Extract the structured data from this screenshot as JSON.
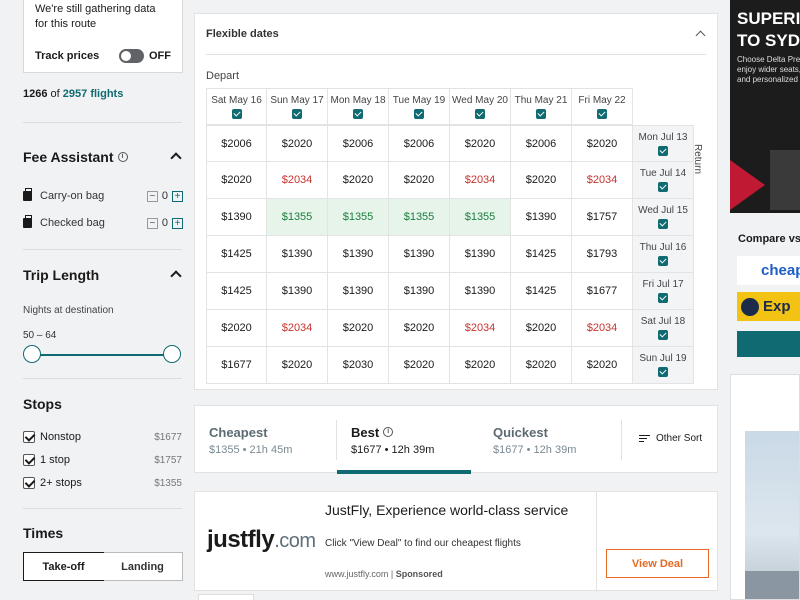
{
  "sidebar": {
    "track": {
      "message": "We're still gathering data for this route",
      "label": "Track prices",
      "toggle_state": "OFF"
    },
    "flight_count": {
      "shown": "1266",
      "of": "of",
      "total": "2957 flights"
    },
    "fee_assistant": {
      "title": "Fee Assistant",
      "carry_on": {
        "label": "Carry-on bag",
        "value": "0"
      },
      "checked": {
        "label": "Checked bag",
        "value": "0"
      }
    },
    "trip_length": {
      "title": "Trip Length",
      "nights_label": "Nights at destination",
      "range": "50 – 64"
    },
    "stops": {
      "title": "Stops",
      "items": [
        {
          "label": "Nonstop",
          "price": "$1677"
        },
        {
          "label": "1 stop",
          "price": "$1757"
        },
        {
          "label": "2+ stops",
          "price": "$1355"
        }
      ]
    },
    "times": {
      "title": "Times",
      "tabs": [
        "Take-off",
        "Landing"
      ]
    }
  },
  "flex": {
    "title": "Flexible dates",
    "depart_label": "Depart",
    "return_label": "Return",
    "depart_dates": [
      "Sat May 16",
      "Sun May 17",
      "Mon May 18",
      "Tue May 19",
      "Wed May 20",
      "Thu May 21",
      "Fri May 22"
    ],
    "return_dates": [
      "Mon Jul 13",
      "Tue Jul 14",
      "Wed Jul 15",
      "Thu Jul 16",
      "Fri Jul 17",
      "Sat Jul 18",
      "Sun Jul 19"
    ],
    "prices": [
      [
        "$2006",
        "$2020",
        "$2006",
        "$2006",
        "$2020",
        "$2006",
        "$2020"
      ],
      [
        "$2020",
        "$2034",
        "$2020",
        "$2020",
        "$2034",
        "$2020",
        "$2034"
      ],
      [
        "$1390",
        "$1355",
        "$1355",
        "$1355",
        "$1355",
        "$1390",
        "$1757"
      ],
      [
        "$1425",
        "$1390",
        "$1390",
        "$1390",
        "$1390",
        "$1425",
        "$1793"
      ],
      [
        "$1425",
        "$1390",
        "$1390",
        "$1390",
        "$1390",
        "$1425",
        "$1677"
      ],
      [
        "$2020",
        "$2034",
        "$2020",
        "$2020",
        "$2034",
        "$2020",
        "$2034"
      ],
      [
        "$1677",
        "$2020",
        "$2030",
        "$2020",
        "$2020",
        "$2020",
        "$2020"
      ]
    ],
    "price_status": [
      [
        "n",
        "n",
        "n",
        "n",
        "n",
        "n",
        "n"
      ],
      [
        "n",
        "high",
        "n",
        "n",
        "high",
        "n",
        "high"
      ],
      [
        "n",
        "low",
        "low",
        "low",
        "low",
        "n",
        "n"
      ],
      [
        "n",
        "n",
        "n",
        "n",
        "n",
        "n",
        "n"
      ],
      [
        "n",
        "n",
        "n",
        "n",
        "n",
        "n",
        "n"
      ],
      [
        "n",
        "high",
        "n",
        "n",
        "high",
        "n",
        "high"
      ],
      [
        "n",
        "n",
        "n",
        "n",
        "n",
        "n",
        "n"
      ]
    ],
    "colors": {
      "high": "#c7342f",
      "low": "#1a7e3e",
      "low_bg": "#e6f4ea",
      "accent": "#0f6b71"
    }
  },
  "sort": {
    "tabs": [
      {
        "name": "Cheapest",
        "sub": "$1355 • 21h 45m"
      },
      {
        "name": "Best",
        "sub": "$1677 • 12h 39m"
      },
      {
        "name": "Quickest",
        "sub": "$1677 • 12h 39m"
      }
    ],
    "active": "Best",
    "other_sort": "Other Sort"
  },
  "ad": {
    "logo_main": "justfly",
    "logo_suffix": ".com",
    "title": "JustFly, Experience world-class service",
    "desc": "Click \"View Deal\" to find our cheapest flights",
    "url": "www.justfly.com",
    "sponsored": "Sponsored",
    "cta": "View Deal",
    "cta_color": "#e66a24"
  },
  "right_column": {
    "banner_title_1": "SUPERIO",
    "banner_title_2": "TO SYDN",
    "banner_lines": [
      "Choose Delta Premi",
      "enjoy wider seats, a",
      "and personalized se"
    ],
    "compare_label": "Compare vs",
    "compare_cheap": "cheap",
    "compare_exp": "Exp"
  }
}
